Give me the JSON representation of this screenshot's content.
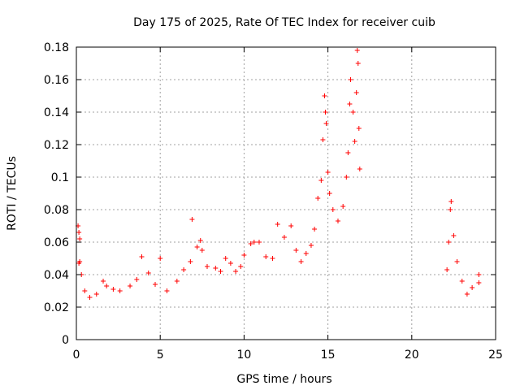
{
  "chart_data": {
    "type": "scatter",
    "title": "Day 175 of 2025, Rate Of TEC Index for receiver cuib",
    "xlabel": "GPS time / hours",
    "ylabel": "ROTI / TECUs",
    "xlim": [
      0,
      25
    ],
    "ylim": [
      0,
      0.18
    ],
    "xticks": [
      0,
      5,
      10,
      15,
      20,
      25
    ],
    "xtick_labels": [
      "0",
      "5",
      "10",
      "15",
      "20",
      "25"
    ],
    "yticks": [
      0,
      0.02,
      0.04,
      0.06,
      0.08,
      0.1,
      0.12,
      0.14,
      0.16,
      0.18
    ],
    "ytick_labels": [
      "0",
      "0.02",
      "0.04",
      "0.06",
      "0.08",
      "0.1",
      "0.12",
      "0.14",
      "0.16",
      "0.18"
    ],
    "grid": true,
    "marker": "+",
    "color": "#ff0000",
    "series": [
      {
        "points": [
          [
            0.1,
            0.07
          ],
          [
            0.15,
            0.066
          ],
          [
            0.2,
            0.062
          ],
          [
            0.2,
            0.048
          ],
          [
            0.15,
            0.047
          ],
          [
            0.3,
            0.04
          ],
          [
            0.5,
            0.03
          ],
          [
            0.8,
            0.026
          ],
          [
            1.2,
            0.028
          ],
          [
            1.6,
            0.036
          ],
          [
            1.8,
            0.033
          ],
          [
            2.2,
            0.031
          ],
          [
            2.6,
            0.03
          ],
          [
            3.2,
            0.033
          ],
          [
            3.6,
            0.037
          ],
          [
            3.9,
            0.051
          ],
          [
            4.3,
            0.041
          ],
          [
            4.7,
            0.034
          ],
          [
            5.0,
            0.05
          ],
          [
            5.4,
            0.03
          ],
          [
            6.0,
            0.036
          ],
          [
            6.4,
            0.043
          ],
          [
            6.9,
            0.074
          ],
          [
            6.8,
            0.048
          ],
          [
            7.2,
            0.057
          ],
          [
            7.4,
            0.061
          ],
          [
            7.5,
            0.055
          ],
          [
            7.8,
            0.045
          ],
          [
            8.3,
            0.044
          ],
          [
            8.6,
            0.042
          ],
          [
            8.9,
            0.05
          ],
          [
            9.2,
            0.047
          ],
          [
            9.5,
            0.042
          ],
          [
            9.8,
            0.045
          ],
          [
            10.0,
            0.052
          ],
          [
            10.4,
            0.059
          ],
          [
            10.6,
            0.06
          ],
          [
            10.9,
            0.06
          ],
          [
            11.3,
            0.051
          ],
          [
            11.7,
            0.05
          ],
          [
            12.0,
            0.071
          ],
          [
            12.4,
            0.063
          ],
          [
            12.8,
            0.07
          ],
          [
            13.1,
            0.055
          ],
          [
            13.4,
            0.048
          ],
          [
            13.7,
            0.053
          ],
          [
            14.0,
            0.058
          ],
          [
            14.2,
            0.068
          ],
          [
            14.4,
            0.087
          ],
          [
            14.6,
            0.098
          ],
          [
            14.7,
            0.123
          ],
          [
            14.8,
            0.15
          ],
          [
            14.85,
            0.14
          ],
          [
            14.9,
            0.133
          ],
          [
            15.0,
            0.103
          ],
          [
            15.1,
            0.09
          ],
          [
            15.3,
            0.08
          ],
          [
            15.6,
            0.073
          ],
          [
            15.9,
            0.082
          ],
          [
            16.1,
            0.1
          ],
          [
            16.2,
            0.115
          ],
          [
            16.3,
            0.145
          ],
          [
            16.35,
            0.16
          ],
          [
            16.5,
            0.14
          ],
          [
            16.6,
            0.122
          ],
          [
            16.7,
            0.152
          ],
          [
            16.75,
            0.178
          ],
          [
            16.8,
            0.17
          ],
          [
            16.85,
            0.13
          ],
          [
            16.9,
            0.105
          ],
          [
            22.1,
            0.043
          ],
          [
            22.2,
            0.06
          ],
          [
            22.3,
            0.08
          ],
          [
            22.35,
            0.085
          ],
          [
            22.5,
            0.064
          ],
          [
            22.7,
            0.048
          ],
          [
            23.0,
            0.036
          ],
          [
            23.3,
            0.028
          ],
          [
            23.6,
            0.032
          ],
          [
            24.0,
            0.04
          ],
          [
            24.0,
            0.035
          ]
        ]
      }
    ]
  }
}
